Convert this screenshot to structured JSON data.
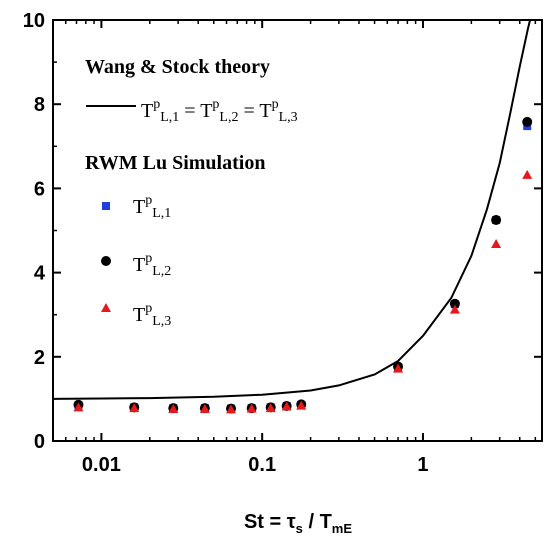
{
  "chart_data": {
    "type": "scatter",
    "x_scale": "log",
    "xlim": [
      0.005,
      5.5
    ],
    "ylim": [
      0,
      10
    ],
    "x_ticks": [
      {
        "value": 0.01,
        "label": "0.01"
      },
      {
        "value": 0.1,
        "label": "0.1"
      },
      {
        "value": 1,
        "label": "1"
      }
    ],
    "y_ticks": [
      {
        "value": 0,
        "label": "0"
      },
      {
        "value": 2,
        "label": "2"
      },
      {
        "value": 4,
        "label": "4"
      },
      {
        "value": 6,
        "label": "6"
      },
      {
        "value": 8,
        "label": "8"
      },
      {
        "value": 10,
        "label": "10"
      }
    ],
    "xlabel": {
      "main": "St = τ",
      "sub1": "s",
      "mid": " / T",
      "sub2": "mE"
    },
    "grid": false,
    "legend": {
      "position": "top-left",
      "theory_header": "Wang & Stock theory",
      "theory_entry": {
        "base": "T",
        "sup": "p",
        "sub": "L,1",
        "eq": " = ",
        "sub2": "L,2",
        "sub3": "L,3"
      },
      "sim_header": "RWM Lu Simulation",
      "sim_entries": [
        {
          "base": "T",
          "sup": "p",
          "sub": "L,1"
        },
        {
          "base": "T",
          "sup": "p",
          "sub": "L,2"
        },
        {
          "base": "T",
          "sup": "p",
          "sub": "L,3"
        }
      ]
    },
    "series": [
      {
        "kind": "line",
        "color": "#000000",
        "x": [
          0.005,
          0.01,
          0.02,
          0.05,
          0.1,
          0.2,
          0.3,
          0.5,
          0.7,
          1.0,
          1.5,
          2.0,
          2.5,
          3.0,
          3.5,
          4.0,
          4.5,
          5.0
        ],
        "y": [
          1.0,
          1.01,
          1.02,
          1.05,
          1.1,
          1.2,
          1.32,
          1.58,
          1.9,
          2.5,
          3.4,
          4.4,
          5.5,
          6.6,
          7.8,
          8.9,
          9.8,
          10.5
        ]
      },
      {
        "kind": "square",
        "color": "#1f3fdd",
        "x": [
          0.0072,
          0.016,
          0.028,
          0.044,
          0.064,
          0.086,
          0.113,
          0.142,
          0.175,
          0.7,
          1.58,
          2.85,
          4.45
        ],
        "y": [
          0.85,
          0.8,
          0.78,
          0.78,
          0.77,
          0.78,
          0.8,
          0.83,
          0.86,
          1.76,
          3.25,
          5.25,
          7.48
        ]
      },
      {
        "kind": "circle",
        "color": "#000000",
        "x": [
          0.0072,
          0.016,
          0.028,
          0.044,
          0.064,
          0.086,
          0.113,
          0.142,
          0.175,
          0.7,
          1.58,
          2.85,
          4.45
        ],
        "y": [
          0.86,
          0.8,
          0.78,
          0.78,
          0.77,
          0.78,
          0.8,
          0.83,
          0.87,
          1.77,
          3.26,
          5.25,
          7.58
        ]
      },
      {
        "kind": "triangle",
        "color": "#e31a1c",
        "x": [
          0.0072,
          0.016,
          0.028,
          0.044,
          0.064,
          0.086,
          0.113,
          0.142,
          0.175,
          0.7,
          1.58,
          2.85,
          4.45
        ],
        "y": [
          0.8,
          0.78,
          0.76,
          0.76,
          0.75,
          0.77,
          0.78,
          0.82,
          0.84,
          1.72,
          3.12,
          4.68,
          6.32
        ]
      }
    ]
  }
}
